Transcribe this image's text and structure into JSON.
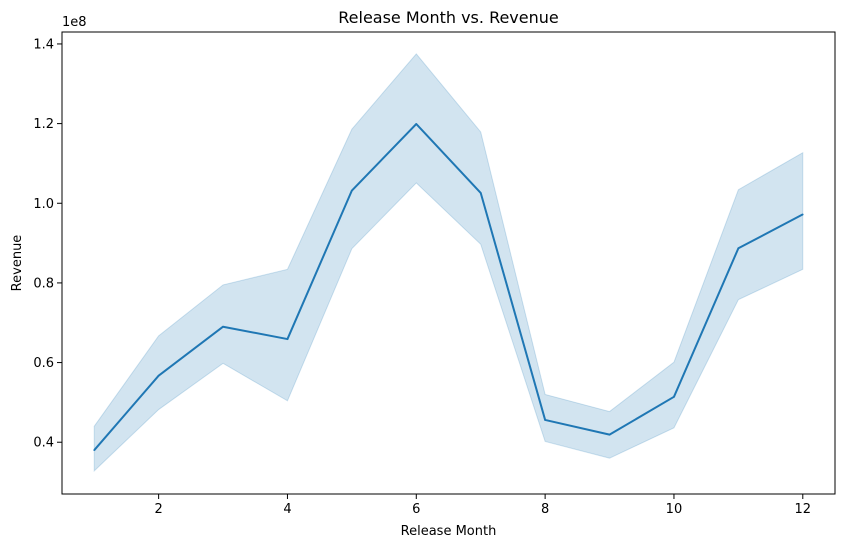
{
  "chart_data": {
    "type": "line",
    "title": "Release Month vs. Revenue",
    "xlabel": "Release Month",
    "ylabel": "Revenue",
    "y_offset_label": "1e8",
    "xlim": [
      0.5,
      12.5
    ],
    "ylim": [
      0.27,
      1.43
    ],
    "x_ticks": [
      2,
      4,
      6,
      8,
      10,
      12
    ],
    "x_tick_labels": [
      "2",
      "4",
      "6",
      "8",
      "10",
      "12"
    ],
    "y_ticks": [
      0.4,
      0.6,
      0.8,
      1.0,
      1.2,
      1.4
    ],
    "y_tick_labels": [
      "0.4",
      "0.6",
      "0.8",
      "1.0",
      "1.2",
      "1.4"
    ],
    "grid": false,
    "legend": "none",
    "x": [
      1,
      2,
      3,
      4,
      5,
      6,
      7,
      8,
      9,
      10,
      11,
      12
    ],
    "series": [
      {
        "values": [
          0.38,
          0.567,
          0.69,
          0.659,
          1.032,
          1.199,
          1.026,
          0.456,
          0.419,
          0.514,
          0.887,
          0.972
        ],
        "ci_lower": [
          0.328,
          0.482,
          0.598,
          0.504,
          0.886,
          1.051,
          0.897,
          0.402,
          0.36,
          0.436,
          0.758,
          0.834
        ],
        "ci_upper": [
          0.44,
          0.667,
          0.795,
          0.834,
          1.186,
          1.375,
          1.179,
          0.52,
          0.477,
          0.601,
          1.034,
          1.127
        ],
        "color": "#1f77b4",
        "band_color": "#1f77b4"
      }
    ]
  }
}
